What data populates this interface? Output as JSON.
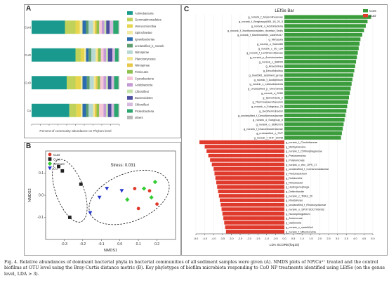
{
  "panels": {
    "a_label": "A",
    "b_label": "B",
    "c_label": "C"
  },
  "colors": {
    "control": "#3a9c3a",
    "cuo": "#e03a2c",
    "phyla": [
      "#1a9a8e",
      "#c1d25a",
      "#e7d64d",
      "#f1eaa0",
      "#2b6cb0",
      "#5c9c6f",
      "#b7d9d3",
      "#f2e68f",
      "#e8c84b",
      "#8fbf4d",
      "#f4c6d6",
      "#c59ad6",
      "#c3e2a8",
      "#4c4f9e",
      "#d7b9df",
      "#2ba66f",
      "#b7b7b7"
    ]
  },
  "chart_data": [
    {
      "type": "bar",
      "orientation": "horizontal-stacked",
      "panel": "A",
      "categories": [
        "Cu",
        "HACuO",
        "CuO",
        "Cont"
      ],
      "xlabel": "Percent of community abundance on Phylum level",
      "xlim": [
        0,
        1
      ],
      "legend_position": "right",
      "series": [
        {
          "name": "Actinobacteria",
          "values": [
            0.43,
            0.4,
            0.5,
            0.38
          ]
        },
        {
          "name": "Gemmatimonadetes",
          "values": [
            0.08,
            0.1,
            0.06,
            0.12
          ]
        },
        {
          "name": "Verrucomicrobia",
          "values": [
            0.05,
            0.06,
            0.04,
            0.05
          ]
        },
        {
          "name": "Spirochaetae",
          "values": [
            0.02,
            0.02,
            0.02,
            0.03
          ]
        },
        {
          "name": "Ignavibacteriae",
          "values": [
            0.04,
            0.05,
            0.03,
            0.04
          ]
        },
        {
          "name": "unclassified_k_norank",
          "values": [
            0.03,
            0.03,
            0.03,
            0.03
          ]
        },
        {
          "name": "Nitrospirae",
          "values": [
            0.05,
            0.05,
            0.05,
            0.05
          ]
        },
        {
          "name": "Planctomycetes",
          "values": [
            0.02,
            0.02,
            0.02,
            0.02
          ]
        },
        {
          "name": "Nitrospinae",
          "values": [
            0.02,
            0.02,
            0.01,
            0.02
          ]
        },
        {
          "name": "Firmicutes",
          "values": [
            0.03,
            0.03,
            0.03,
            0.03
          ]
        },
        {
          "name": "Cyanobacteria",
          "values": [
            0.05,
            0.04,
            0.03,
            0.03
          ]
        },
        {
          "name": "Acidobacteria",
          "values": [
            0.03,
            0.03,
            0.03,
            0.03
          ]
        },
        {
          "name": "Chloroflexi",
          "values": [
            0.02,
            0.02,
            0.02,
            0.02
          ]
        },
        {
          "name": "Bacteroidetes",
          "values": [
            0.04,
            0.04,
            0.05,
            0.04
          ]
        },
        {
          "name": "Chloroflexi",
          "values": [
            0.03,
            0.03,
            0.03,
            0.04
          ]
        },
        {
          "name": "Proteobacteria",
          "values": [
            0.05,
            0.05,
            0.04,
            0.06
          ]
        },
        {
          "name": "others",
          "values": [
            0.01,
            0.01,
            0.01,
            0.01
          ]
        }
      ]
    },
    {
      "type": "scatter",
      "panel": "B",
      "title": "Stress: 0.031",
      "xlabel": "NMDS1",
      "ylabel": "NMDS2",
      "xlim": [
        -0.4,
        0.3
      ],
      "ylim": [
        -0.2,
        0.2
      ],
      "x_ticks": [
        "-0.3",
        "-0.2",
        "-0.1",
        "0.0",
        "0.1",
        "0.2"
      ],
      "y_ticks": [
        "0.1",
        "0.0",
        "-0.1"
      ],
      "legend_position": "top-left",
      "series": [
        {
          "name": "CuO",
          "marker": "circle",
          "color": "#e03a2c",
          "points": [
            [
              0.08,
              0.03
            ],
            [
              0.16,
              0.02
            ],
            [
              0.2,
              -0.04
            ],
            [
              0.1,
              -0.06
            ]
          ]
        },
        {
          "name": "Cont",
          "marker": "square",
          "color": "#222222",
          "points": [
            [
              -0.33,
              0.13
            ],
            [
              -0.21,
              0.05
            ],
            [
              -0.27,
              -0.1
            ],
            [
              -0.31,
              0.11
            ]
          ]
        },
        {
          "name": "HACuO",
          "marker": "diamond",
          "color": "#33cc33",
          "points": [
            [
              0.19,
              0.06
            ],
            [
              0.13,
              0.03
            ],
            [
              0.17,
              -0.01
            ],
            [
              0.04,
              -0.02
            ]
          ]
        },
        {
          "name": "Cu",
          "marker": "triangle-down",
          "color": "#2233cc",
          "points": [
            [
              -0.07,
              0.03
            ],
            [
              -0.11,
              -0.01
            ],
            [
              0.01,
              0.02
            ],
            [
              -0.16,
              -0.08
            ]
          ]
        }
      ]
    },
    {
      "type": "bar",
      "orientation": "horizontal-diverging",
      "panel": "C",
      "title": "LEfSe Bar",
      "xlabel": "LDA SCORE(log10)",
      "xlim": [
        -5,
        5
      ],
      "x_ticks": [
        "-5.0",
        "-4.5",
        "-4.0",
        "-3.5",
        "-3.0",
        "-2.5",
        "-2.0",
        "-1.5",
        "-1.0",
        "-0.5",
        "0.0",
        "0.5",
        "1.0",
        "1.5",
        "2.0",
        "2.5",
        "3.0",
        "3.5",
        "4.0",
        "4.5",
        "5.0"
      ],
      "legend_position": "top-right",
      "legend": [
        "Cont",
        "CuO"
      ],
      "series": [
        {
          "name": "Cont",
          "categories": [
            "g_norank_f_Anaerolineaceae",
            "g_norank_f_Bergbaugn065_15_20_3",
            "g_norank_o_Acidobacteria",
            "g_norank_f_Xanthomonadales_Incertae_Sedis",
            "g_norank_f_Bacteroidetes_vadinHA17",
            "g_Nitrospira",
            "g_norank_o_Sva0485",
            "g_norank_c_S0_L34",
            "g_norank_f_Lentimicrobiaceae",
            "g_norank_p_Aminicenantes",
            "g_norank_o_SBR29",
            "g_Anaerolinea",
            "g_Desulfobulbus",
            "g_Sva0081_sediment_group",
            "g_norank_f_Acidiphilium",
            "g_norank_c_Latescibacteria",
            "g_unclassified_p_Chlorobiota",
            "g_norank_o_S085",
            "g_Spirochaeta_2",
            "g_Thermoanaerobaculum",
            "g_norank_o_Subgroup_23",
            "g_Geothermobacter",
            "g_unclassified_f_Desulfomonadaceae",
            "g_norank_o_Subgroup_6",
            "g_norank_o_SBR2076",
            "g_norank_f_Draconibacteriaceae",
            "g_unclassified_c_SVP",
            "g_norank_f_VHF_14048"
          ],
          "values": [
            4.9,
            4.7,
            4.6,
            4.5,
            4.4,
            4.3,
            4.25,
            4.2,
            4.15,
            4.1,
            4.05,
            4.0,
            3.95,
            3.9,
            3.85,
            3.8,
            3.75,
            3.7,
            3.65,
            3.6,
            3.55,
            3.5,
            3.45,
            3.4,
            3.35,
            3.3,
            3.25,
            3.2
          ]
        },
        {
          "name": "CuO",
          "categories": [
            "g_norank_f_Clostridiaceae",
            "g_Methylotenera",
            "g_norank_f_Chitinophagaceae",
            "g_Pseudomonas",
            "g_Polaromonas",
            "g_norank_c_env_OPS_17",
            "g_unclassified_f_Comamonadaceae",
            "g_Flavobacterium",
            "g_Dokdonella",
            "g_Rhizobacter",
            "g_Hydrogenophaga",
            "g_Deferribacter",
            "g_norank_c_TRA3_20",
            "g_Rhodoferax",
            "g_unclassified_f_Rhodocyclaceae",
            "g_norank_o_SPOTSOCT00m83",
            "g_Novosphingobium",
            "g_Aeromonas",
            "g_Gallionella",
            "g_norank_c_cadetWoll",
            "g_norank_f_Mitochondria"
          ],
          "values": [
            -4.8,
            -4.5,
            -4.4,
            -4.3,
            -4.2,
            -4.1,
            -4.0,
            -3.95,
            -3.9,
            -3.85,
            -3.8,
            -3.75,
            -3.7,
            -3.65,
            -3.6,
            -3.55,
            -3.5,
            -3.45,
            -3.4,
            -3.35,
            -3.3
          ]
        }
      ]
    }
  ],
  "caption": "Fig. 4. Relative abundances of dominant bacterial phyla in bacterial communities of all sediment samples were given (A). NMDS plots of NP/Cu²⁺ treated and the control biofilms at OTU level using the Bray-Curtis distance metric (B). Key phylotypes of biofilm microbiota responding to CuO NP treatments identified using LEfSe (on the genus level, LDA > 3)."
}
